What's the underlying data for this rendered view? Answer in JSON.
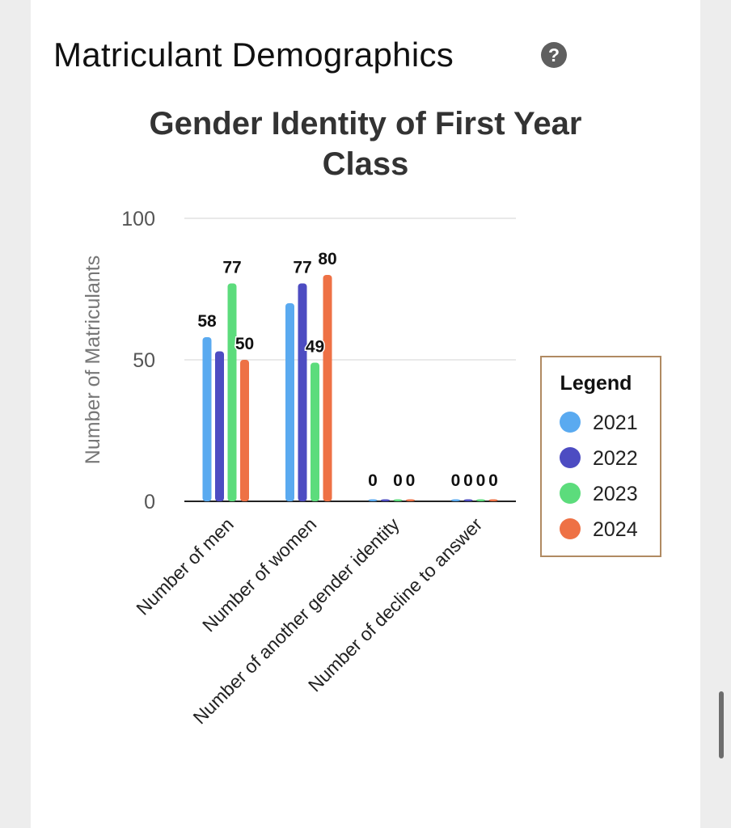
{
  "page": {
    "section_title": "Matriculant Demographics",
    "help_icon": "question-circle-icon"
  },
  "chart_data": {
    "type": "bar",
    "title": "Gender Identity of First Year Class",
    "title_lines": [
      "Gender Identity of First Year",
      "Class"
    ],
    "ylabel": "Number of Matriculants",
    "xlabel": "",
    "ylim": [
      0,
      100
    ],
    "yticks": [
      0,
      50,
      100
    ],
    "grid": true,
    "categories": [
      "Number of men",
      "Number of women",
      "Number of another gender identity",
      "Number of decline to answer"
    ],
    "series": [
      {
        "name": "2021",
        "color": "#5aaaf0",
        "values": [
          58,
          70,
          0,
          0
        ]
      },
      {
        "name": "2022",
        "color": "#4d4cc2",
        "values": [
          53,
          77,
          0,
          0
        ]
      },
      {
        "name": "2023",
        "color": "#5cdc7c",
        "values": [
          77,
          49,
          0,
          0
        ]
      },
      {
        "name": "2024",
        "color": "#ee7145",
        "values": [
          50,
          80,
          0,
          0
        ]
      }
    ],
    "data_labels": [
      [
        "58",
        "",
        "77",
        "50"
      ],
      [
        "",
        "77",
        "49",
        "80"
      ],
      [
        "0",
        "",
        "0",
        "0"
      ],
      [
        "0",
        "0",
        "0",
        "0"
      ]
    ],
    "legend": {
      "title": "Legend",
      "position": "right",
      "border_color": "#b08a62"
    }
  }
}
